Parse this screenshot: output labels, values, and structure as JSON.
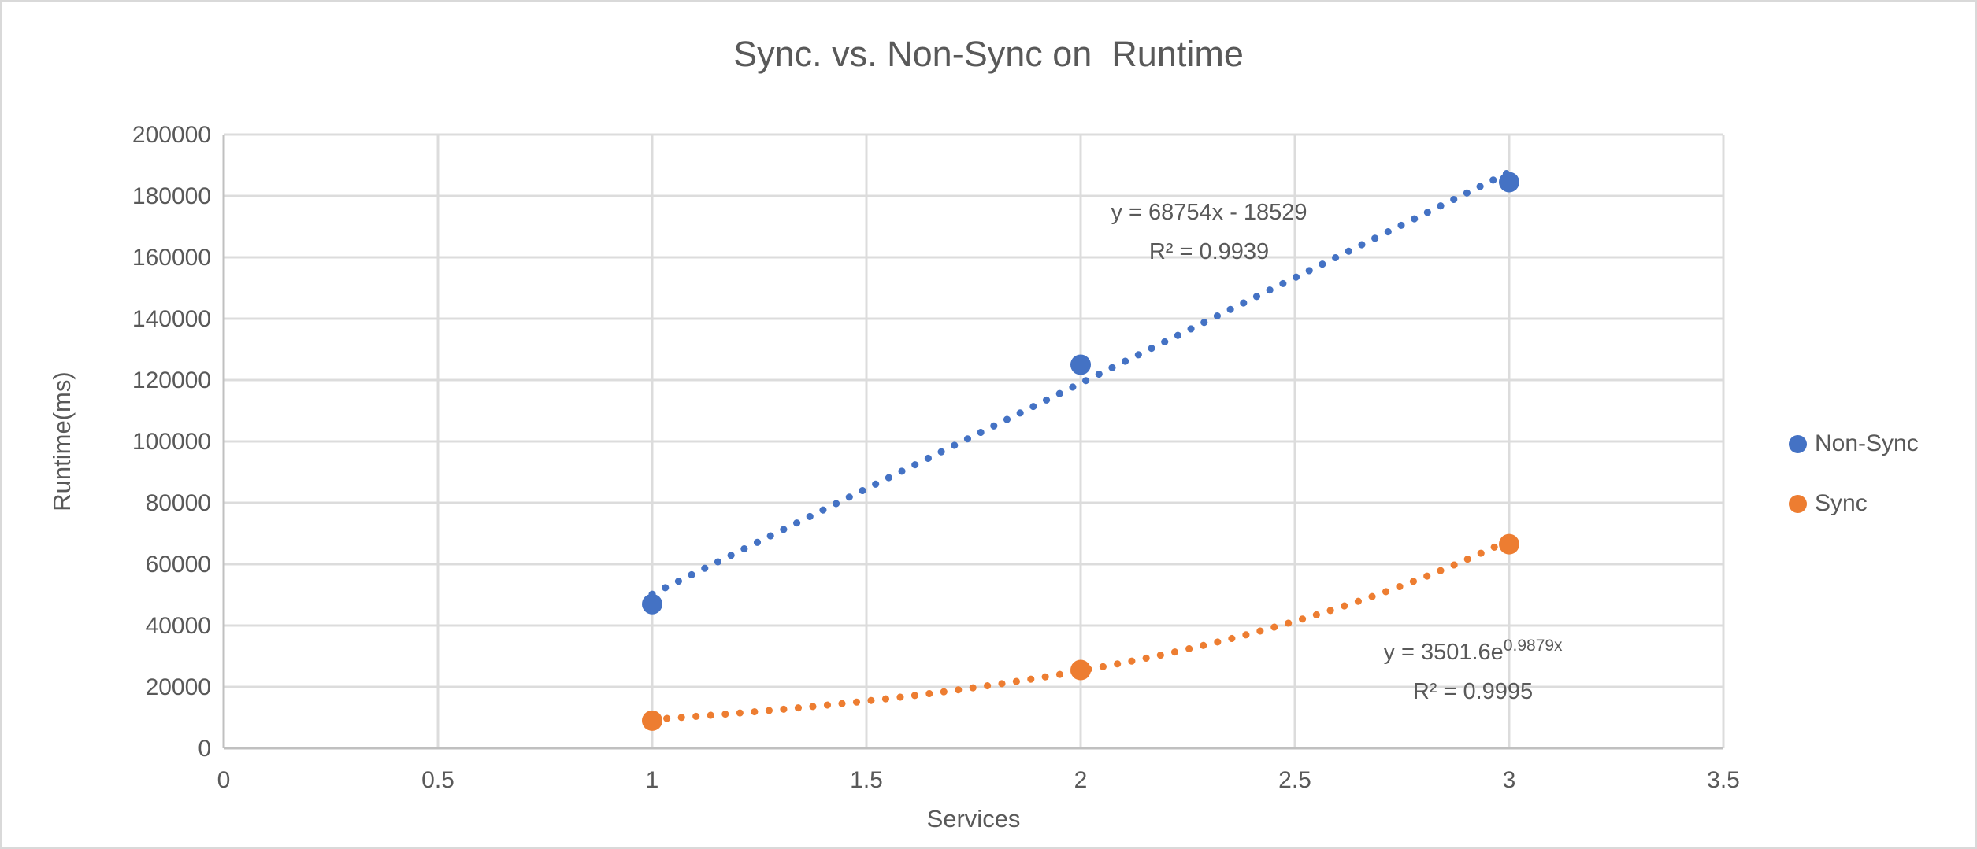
{
  "chart_data": {
    "type": "scatter",
    "title": "Sync. vs. Non-Sync on  Runtime",
    "xlabel": "Services",
    "ylabel": "Runtime(ms)",
    "xlim": [
      0,
      3.5
    ],
    "ylim": [
      0,
      200000
    ],
    "x_ticks": [
      0,
      0.5,
      1,
      1.5,
      2,
      2.5,
      3,
      3.5
    ],
    "x_tick_labels": [
      "0",
      "0.5",
      "1",
      "1.5",
      "2",
      "2.5",
      "3",
      "3.5"
    ],
    "y_ticks": [
      0,
      20000,
      40000,
      60000,
      80000,
      100000,
      120000,
      140000,
      160000,
      180000,
      200000
    ],
    "y_tick_labels": [
      "0",
      "20000",
      "40000",
      "60000",
      "80000",
      "100000",
      "120000",
      "140000",
      "160000",
      "180000",
      "200000"
    ],
    "grid": true,
    "legend_position": "right",
    "series": [
      {
        "name": "Non-Sync",
        "color": "#4472C4",
        "x": [
          1,
          2,
          3
        ],
        "y": [
          47000,
          125000,
          184500
        ],
        "trendline": {
          "type": "linear",
          "style": "dotted",
          "slope": 68754,
          "intercept": -18529,
          "x_range": [
            1,
            3
          ],
          "equation": "y = 68754x - 18529",
          "r2": "R² = 0.9939"
        }
      },
      {
        "name": "Sync",
        "color": "#ED7D31",
        "x": [
          1,
          2,
          3
        ],
        "y": [
          9000,
          25500,
          66500
        ],
        "trendline": {
          "type": "exponential",
          "style": "dotted",
          "coefficient": 3501.6,
          "exponent": 0.9879,
          "x_range": [
            1,
            3
          ],
          "equation_base": "y = 3501.6e",
          "equation_exponent": "0.9879x",
          "r2": "R² = 0.9995"
        }
      }
    ]
  },
  "styles": {
    "text_color": "#595959",
    "gridline_color": "#DCDCDC",
    "axis_line_color": "#C0C0C0",
    "background": "#FFFFFF"
  }
}
